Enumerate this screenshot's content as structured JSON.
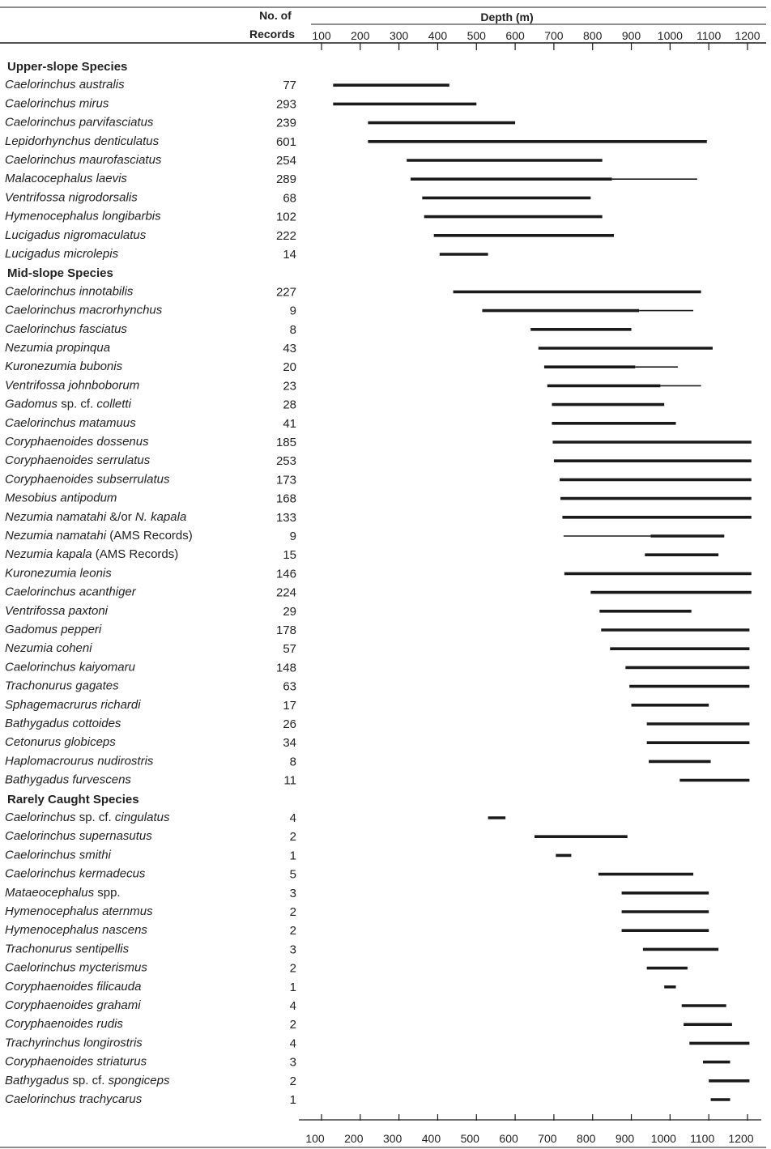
{
  "chart_data": {
    "type": "range",
    "header": {
      "records_line1": "No. of",
      "records_line2": "Records",
      "depth_label": "Depth (m)"
    },
    "x_ticks": [
      100,
      200,
      300,
      400,
      500,
      600,
      700,
      800,
      900,
      1000,
      1100,
      1200
    ],
    "xlim": [
      100,
      1200
    ],
    "sections": [
      {
        "title": "Upper-slope Species",
        "species": [
          {
            "name": [
              [
                "Caelorinchus australis",
                true
              ]
            ],
            "records": 77,
            "ranges": [
              [
                130,
                430,
                "thick"
              ]
            ]
          },
          {
            "name": [
              [
                "Caelorinchus mirus",
                true
              ]
            ],
            "records": 293,
            "ranges": [
              [
                130,
                500,
                "thick"
              ]
            ]
          },
          {
            "name": [
              [
                "Caelorinchus parvifasciatus",
                true
              ]
            ],
            "records": 239,
            "ranges": [
              [
                220,
                600,
                "thick"
              ]
            ]
          },
          {
            "name": [
              [
                "Lepidorhynchus denticulatus",
                true
              ]
            ],
            "records": 601,
            "ranges": [
              [
                220,
                1095,
                "thick"
              ]
            ]
          },
          {
            "name": [
              [
                "Caelorinchus maurofasciatus",
                true
              ]
            ],
            "records": 254,
            "ranges": [
              [
                320,
                825,
                "thick"
              ]
            ]
          },
          {
            "name": [
              [
                "Malacocephalus laevis",
                true
              ]
            ],
            "records": 289,
            "ranges": [
              [
                330,
                850,
                "thick"
              ],
              [
                850,
                1070,
                "thin"
              ]
            ]
          },
          {
            "name": [
              [
                "Ventrifossa nigrodorsalis",
                true
              ]
            ],
            "records": 68,
            "ranges": [
              [
                360,
                795,
                "thick"
              ]
            ]
          },
          {
            "name": [
              [
                "Hymenocephalus longibarbis",
                true
              ]
            ],
            "records": 102,
            "ranges": [
              [
                365,
                825,
                "thick"
              ]
            ]
          },
          {
            "name": [
              [
                "Lucigadus nigromaculatus",
                true
              ]
            ],
            "records": 222,
            "ranges": [
              [
                390,
                855,
                "thick"
              ]
            ]
          },
          {
            "name": [
              [
                "Lucigadus microlepis",
                true
              ]
            ],
            "records": 14,
            "ranges": [
              [
                405,
                530,
                "thick"
              ]
            ]
          }
        ]
      },
      {
        "title": "Mid-slope Species",
        "species": [
          {
            "name": [
              [
                "Caelorinchus innotabilis",
                true
              ]
            ],
            "records": 227,
            "ranges": [
              [
                440,
                1080,
                "thick"
              ]
            ]
          },
          {
            "name": [
              [
                "Caelorinchus macrorhynchus",
                true
              ]
            ],
            "records": 9,
            "ranges": [
              [
                515,
                920,
                "thick"
              ],
              [
                920,
                1060,
                "thin"
              ]
            ]
          },
          {
            "name": [
              [
                "Caelorinchus fasciatus",
                true
              ]
            ],
            "records": 8,
            "ranges": [
              [
                640,
                900,
                "thick"
              ]
            ]
          },
          {
            "name": [
              [
                "Nezumia propinqua",
                true
              ]
            ],
            "records": 43,
            "ranges": [
              [
                660,
                1110,
                "thick"
              ]
            ]
          },
          {
            "name": [
              [
                "Kuronezumia bubonis",
                true
              ]
            ],
            "records": 20,
            "ranges": [
              [
                675,
                910,
                "thick"
              ],
              [
                910,
                1020,
                "thin"
              ]
            ]
          },
          {
            "name": [
              [
                "Ventrifossa johnboborum",
                true
              ]
            ],
            "records": 23,
            "ranges": [
              [
                683,
                975,
                "thick"
              ],
              [
                975,
                1080,
                "thin"
              ]
            ]
          },
          {
            "name": [
              [
                "Gadomus",
                true
              ],
              [
                " sp. cf. ",
                false
              ],
              [
                "colletti",
                true
              ]
            ],
            "records": 28,
            "ranges": [
              [
                695,
                985,
                "thick"
              ]
            ]
          },
          {
            "name": [
              [
                "Caelorinchus matamuus",
                true
              ]
            ],
            "records": 41,
            "ranges": [
              [
                695,
                1015,
                "thick"
              ]
            ]
          },
          {
            "name": [
              [
                "Coryphaenoides dossenus",
                true
              ]
            ],
            "records": 185,
            "ranges": [
              [
                697,
                1210,
                "thick"
              ]
            ]
          },
          {
            "name": [
              [
                "Coryphaenoides serrulatus",
                true
              ]
            ],
            "records": 253,
            "ranges": [
              [
                700,
                1210,
                "thick"
              ]
            ]
          },
          {
            "name": [
              [
                "Coryphaenoides subserrulatus",
                true
              ]
            ],
            "records": 173,
            "ranges": [
              [
                715,
                1210,
                "thick"
              ]
            ]
          },
          {
            "name": [
              [
                "Mesobius antipodum",
                true
              ]
            ],
            "records": 168,
            "ranges": [
              [
                717,
                1210,
                "thick"
              ]
            ]
          },
          {
            "name": [
              [
                "Nezumia namatahi",
                true
              ],
              [
                " &/or ",
                false
              ],
              [
                "N. kapala",
                true
              ]
            ],
            "records": 133,
            "ranges": [
              [
                722,
                1210,
                "thick"
              ]
            ]
          },
          {
            "name": [
              [
                "Nezumia namatahi",
                true
              ],
              [
                "  (AMS Records)",
                false
              ]
            ],
            "records": 9,
            "ranges": [
              [
                725,
                950,
                "thin"
              ],
              [
                950,
                1140,
                "thick"
              ]
            ]
          },
          {
            "name": [
              [
                "Nezumia kapala",
                true
              ],
              [
                "  (AMS Records)",
                false
              ]
            ],
            "records": 15,
            "ranges": [
              [
                935,
                1125,
                "thick"
              ]
            ]
          },
          {
            "name": [
              [
                "Kuronezumia leonis",
                true
              ]
            ],
            "records": 146,
            "ranges": [
              [
                727,
                1210,
                "thick"
              ]
            ]
          },
          {
            "name": [
              [
                "Caelorinchus acanthiger",
                true
              ]
            ],
            "records": 224,
            "ranges": [
              [
                795,
                1210,
                "thick"
              ]
            ]
          },
          {
            "name": [
              [
                "Ventrifossa paxtoni",
                true
              ]
            ],
            "records": 29,
            "ranges": [
              [
                818,
                1055,
                "thick"
              ]
            ]
          },
          {
            "name": [
              [
                "Gadomus pepperi",
                true
              ]
            ],
            "records": 178,
            "ranges": [
              [
                822,
                1205,
                "thick"
              ]
            ]
          },
          {
            "name": [
              [
                "Nezumia coheni",
                true
              ]
            ],
            "records": 57,
            "ranges": [
              [
                845,
                1205,
                "thick"
              ]
            ]
          },
          {
            "name": [
              [
                "Caelorinchus kaiyomaru",
                true
              ]
            ],
            "records": 148,
            "ranges": [
              [
                885,
                1205,
                "thick"
              ]
            ]
          },
          {
            "name": [
              [
                "Trachonurus gagates",
                true
              ]
            ],
            "records": 63,
            "ranges": [
              [
                895,
                1205,
                "thick"
              ]
            ]
          },
          {
            "name": [
              [
                "Sphagemacrurus richardi",
                true
              ]
            ],
            "records": 17,
            "ranges": [
              [
                900,
                1100,
                "thick"
              ]
            ]
          },
          {
            "name": [
              [
                "Bathygadus cottoides",
                true
              ]
            ],
            "records": 26,
            "ranges": [
              [
                940,
                1205,
                "thick"
              ]
            ]
          },
          {
            "name": [
              [
                "Cetonurus globiceps",
                true
              ]
            ],
            "records": 34,
            "ranges": [
              [
                940,
                1205,
                "thick"
              ]
            ]
          },
          {
            "name": [
              [
                "Haplomacrourus nudirostris",
                true
              ]
            ],
            "records": 8,
            "ranges": [
              [
                945,
                1105,
                "thick"
              ]
            ]
          },
          {
            "name": [
              [
                "Bathygadus furvescens",
                true
              ]
            ],
            "records": 11,
            "ranges": [
              [
                1025,
                1205,
                "thick"
              ]
            ]
          }
        ]
      },
      {
        "title": "Rarely Caught Species",
        "species": [
          {
            "name": [
              [
                "Caelorinchus",
                true
              ],
              [
                " sp. cf. ",
                false
              ],
              [
                "cingulatus",
                true
              ]
            ],
            "records": 4,
            "ranges": [
              [
                530,
                575,
                "thick"
              ]
            ]
          },
          {
            "name": [
              [
                "Caelorinchus supernasutus",
                true
              ]
            ],
            "records": 2,
            "ranges": [
              [
                650,
                890,
                "thick"
              ]
            ]
          },
          {
            "name": [
              [
                "Caelorinchus smithi",
                true
              ]
            ],
            "records": 1,
            "ranges": [
              [
                705,
                745,
                "thick"
              ]
            ]
          },
          {
            "name": [
              [
                "Caelorinchus kermadecus",
                true
              ]
            ],
            "records": 5,
            "ranges": [
              [
                815,
                1060,
                "thick"
              ]
            ]
          },
          {
            "name": [
              [
                "Mataeocephalus",
                true
              ],
              [
                " spp.",
                false
              ]
            ],
            "records": 3,
            "ranges": [
              [
                875,
                1100,
                "thick"
              ]
            ]
          },
          {
            "name": [
              [
                "Hymenocephalus aternmus",
                true
              ]
            ],
            "records": 2,
            "ranges": [
              [
                875,
                1100,
                "thick"
              ]
            ]
          },
          {
            "name": [
              [
                "Hymenocephalus nascens",
                true
              ]
            ],
            "records": 2,
            "ranges": [
              [
                875,
                1100,
                "thick"
              ]
            ]
          },
          {
            "name": [
              [
                "Trachonurus sentipellis",
                true
              ]
            ],
            "records": 3,
            "ranges": [
              [
                930,
                1125,
                "thick"
              ]
            ]
          },
          {
            "name": [
              [
                "Caelorinchus mycterismus",
                true
              ]
            ],
            "records": 2,
            "ranges": [
              [
                940,
                1045,
                "thick"
              ]
            ]
          },
          {
            "name": [
              [
                "Coryphaenoides filicauda",
                true
              ]
            ],
            "records": 1,
            "ranges": [
              [
                985,
                1015,
                "thick"
              ]
            ]
          },
          {
            "name": [
              [
                "Coryphaenoides grahami",
                true
              ]
            ],
            "records": 4,
            "ranges": [
              [
                1030,
                1145,
                "thick"
              ]
            ]
          },
          {
            "name": [
              [
                "Coryphaenoides rudis",
                true
              ]
            ],
            "records": 2,
            "ranges": [
              [
                1035,
                1160,
                "thick"
              ]
            ]
          },
          {
            "name": [
              [
                "Trachyrinchus longirostris",
                true
              ]
            ],
            "records": 4,
            "ranges": [
              [
                1050,
                1205,
                "thick"
              ]
            ]
          },
          {
            "name": [
              [
                "Coryphaenoides striaturus",
                true
              ]
            ],
            "records": 3,
            "ranges": [
              [
                1085,
                1155,
                "thick"
              ]
            ]
          },
          {
            "name": [
              [
                "Bathygadus",
                true
              ],
              [
                " sp. cf. ",
                false
              ],
              [
                "spongiceps",
                true
              ]
            ],
            "records": 2,
            "ranges": [
              [
                1100,
                1205,
                "thick"
              ]
            ]
          },
          {
            "name": [
              [
                "Caelorinchus trachycarus",
                true
              ]
            ],
            "records": 1,
            "ranges": [
              [
                1105,
                1155,
                "thick"
              ]
            ]
          }
        ]
      }
    ]
  },
  "colors": {
    "line": "#1a1a1a",
    "text": "#222222",
    "background": "#ffffff"
  }
}
